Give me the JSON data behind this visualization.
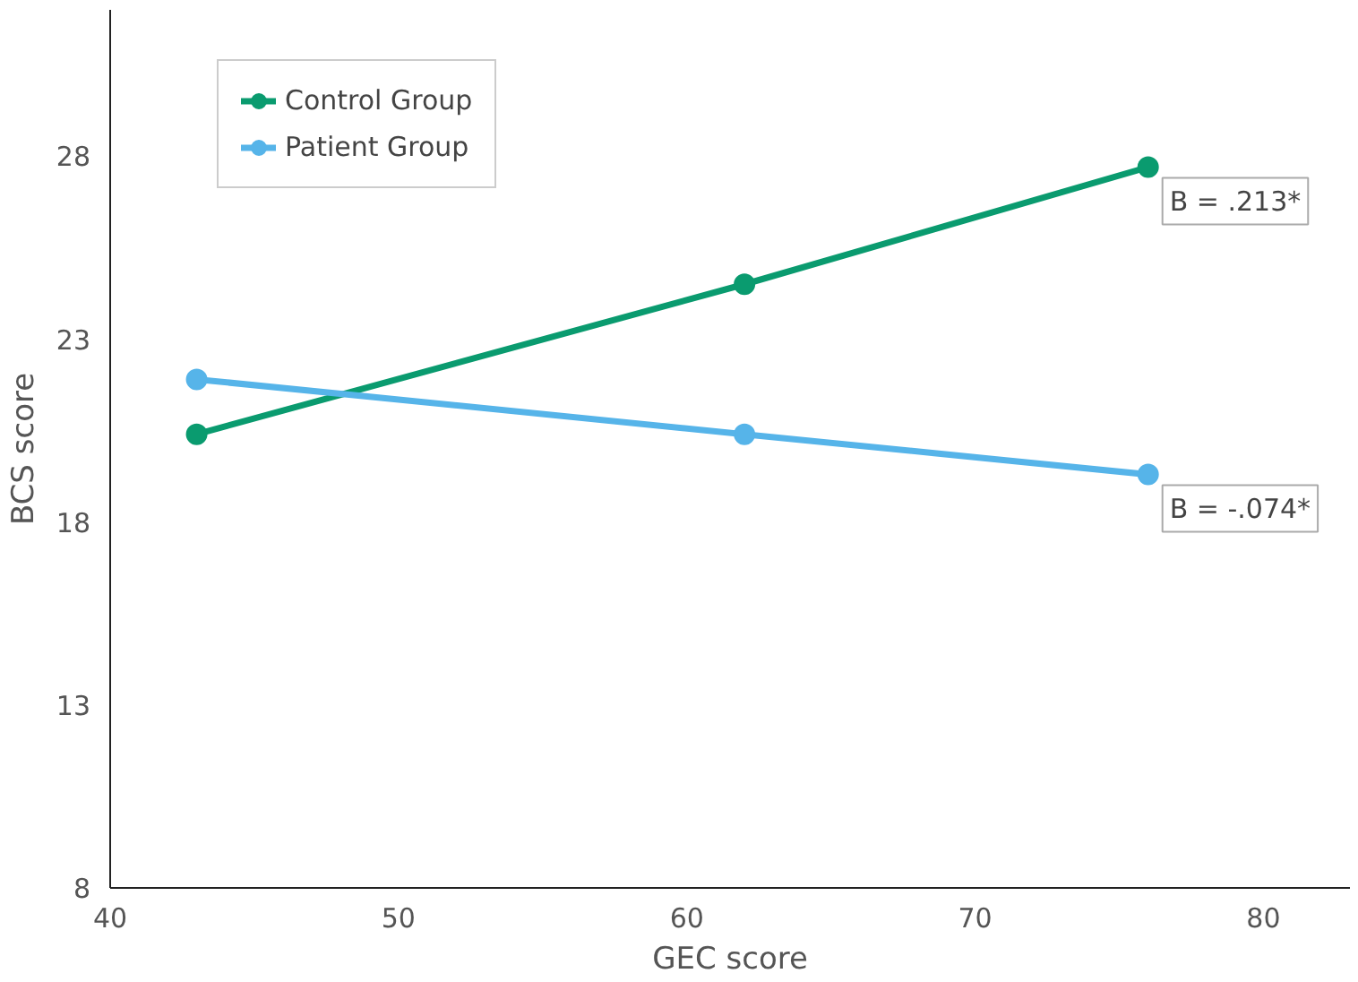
{
  "chart_data": {
    "type": "line",
    "xlabel": "GEC score",
    "ylabel": "BCS score",
    "x": [
      43,
      62,
      76
    ],
    "series": [
      {
        "name": "Control Group",
        "color": "#0a9b6f",
        "values": [
          20.4,
          24.5,
          27.7
        ]
      },
      {
        "name": "Patient Group",
        "color": "#56b4e9",
        "values": [
          21.9,
          20.4,
          19.3
        ]
      }
    ],
    "annotations": [
      {
        "text": "B = .213*",
        "x": 76,
        "y": 27.7
      },
      {
        "text": "B = -.074*",
        "x": 76,
        "y": 19.3
      }
    ],
    "xlim": [
      40,
      83
    ],
    "xticks": [
      40,
      50,
      60,
      70,
      80
    ],
    "ylim": [
      8,
      32
    ],
    "yticks": [
      8,
      13,
      18,
      23,
      28
    ],
    "grid": false,
    "legend": "top left",
    "marker": "circle",
    "line_style": "solid"
  }
}
